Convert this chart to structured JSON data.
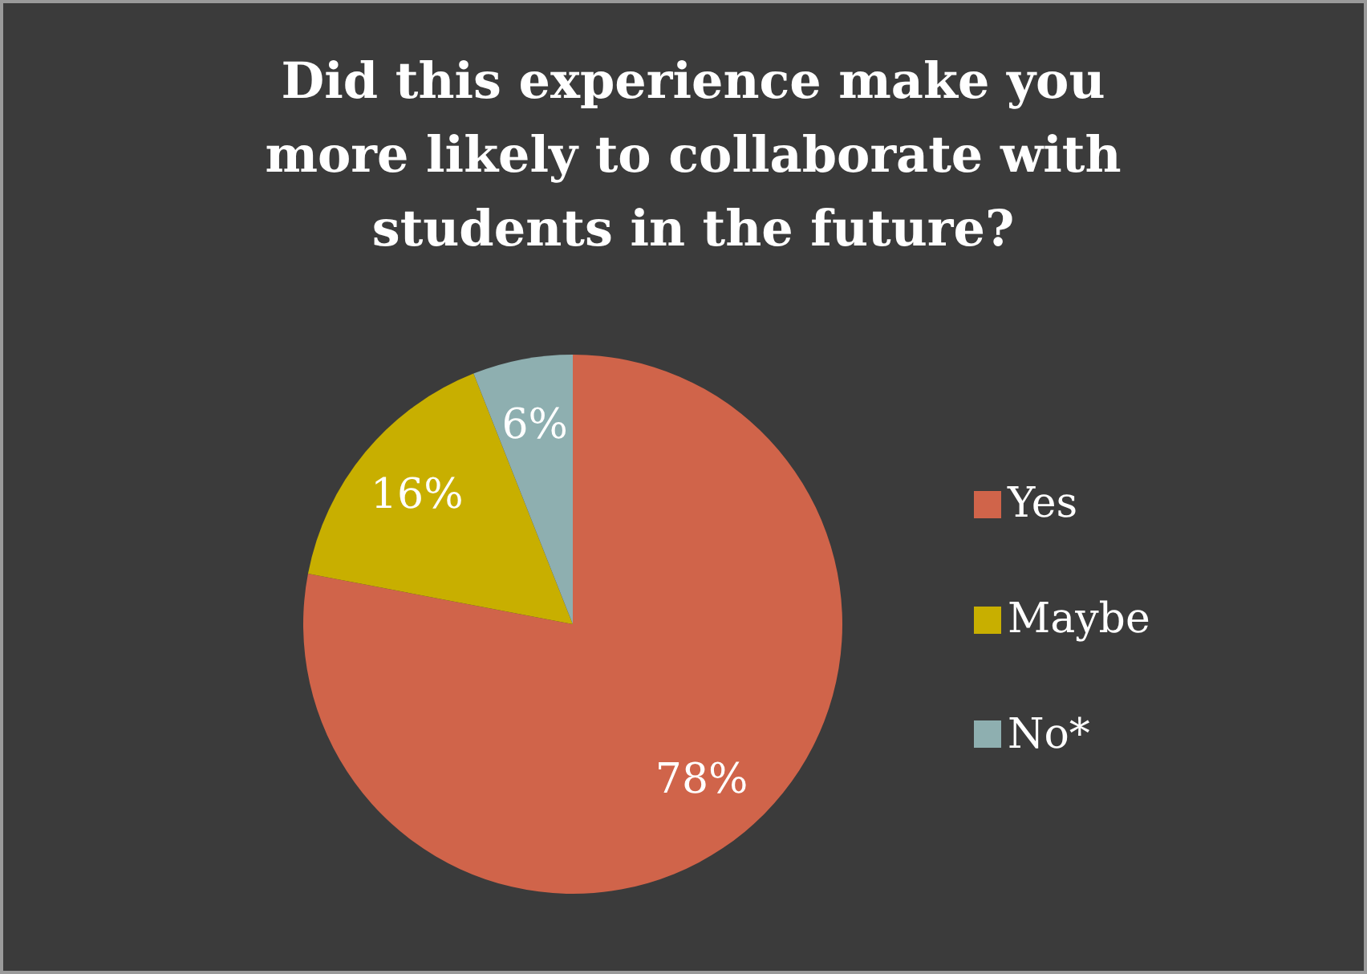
{
  "chart_data": {
    "type": "pie",
    "title": "Did this experience make you more likely to collaborate with students in the future?",
    "categories": [
      "Yes",
      "Maybe",
      "No*"
    ],
    "values": [
      78,
      16,
      6
    ],
    "value_labels": [
      "78%",
      "16%",
      "6%"
    ],
    "colors": [
      "#d0644a",
      "#c8af00",
      "#8eafb0"
    ],
    "legend": "right"
  }
}
